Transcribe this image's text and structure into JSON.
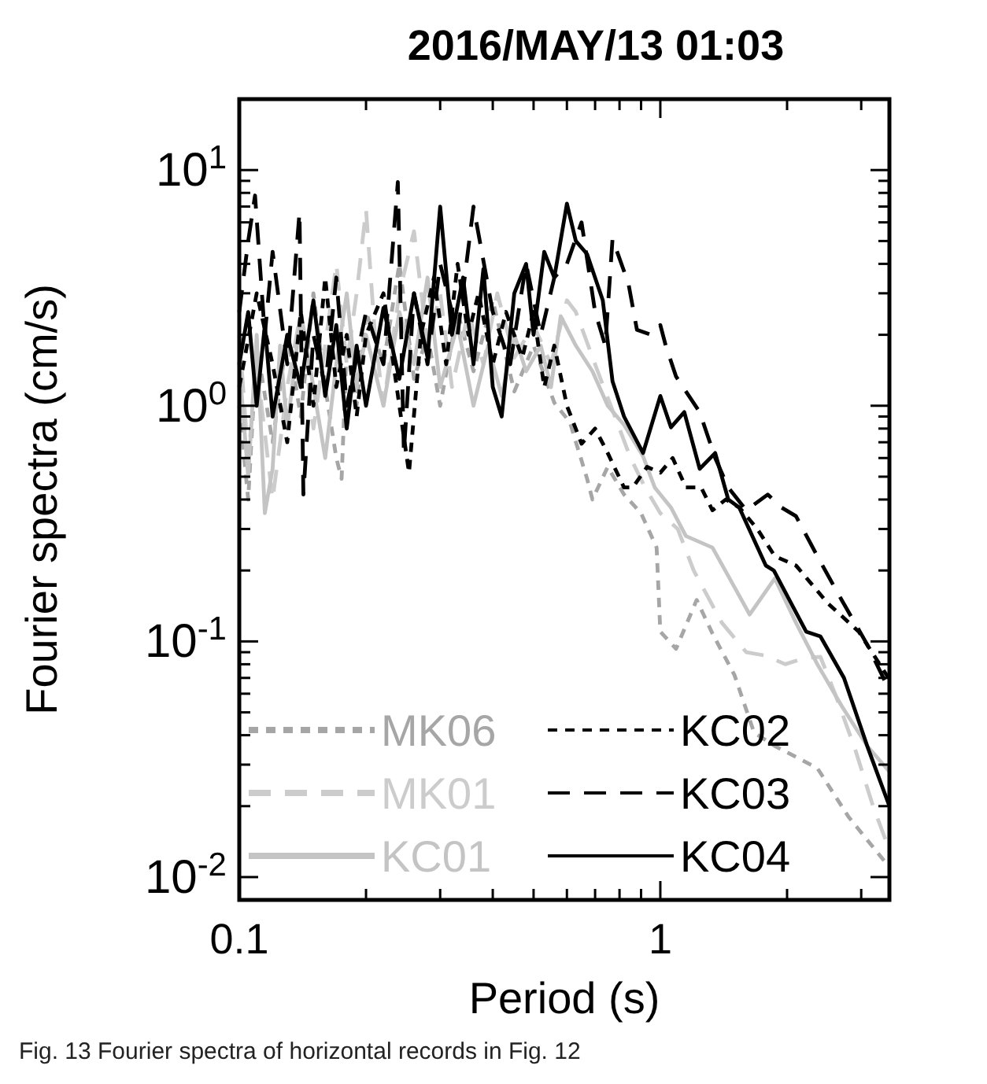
{
  "chart_data": {
    "type": "line",
    "title": "2016/MAY/13 01:03",
    "xlabel": "Period (s)",
    "ylabel": "Fourier spectra (cm/s)",
    "log": "xy",
    "grid": false,
    "legend": "bottom",
    "xlim": [
      0.1,
      3.5
    ],
    "xticks": [
      0.1,
      {
        "value": 0.2,
        "label": null
      },
      {
        "value": 0.3,
        "label": null
      },
      {
        "value": 0.4,
        "label": null
      },
      {
        "value": 0.5,
        "label": null
      },
      {
        "value": 0.6,
        "label": null
      },
      {
        "value": 0.7,
        "label": null
      },
      {
        "value": 0.8,
        "label": null
      },
      {
        "value": 0.9,
        "label": null
      },
      1,
      {
        "value": 2,
        "label": null
      },
      {
        "value": 3,
        "label": null
      }
    ],
    "ylim": [
      0.008,
      20
    ],
    "yticks": [
      {
        "value": 0.01,
        "label": "10$^{-2}$"
      },
      {
        "value": 0.02,
        "label": null
      },
      {
        "value": 0.03,
        "label": null
      },
      {
        "value": 0.04,
        "label": null
      },
      {
        "value": 0.05,
        "label": null
      },
      {
        "value": 0.06,
        "label": null
      },
      {
        "value": 0.07,
        "label": null
      },
      {
        "value": 0.08,
        "label": null
      },
      {
        "value": 0.09,
        "label": null
      },
      {
        "value": 0.1,
        "label": "10$^{-1}$"
      },
      {
        "value": 0.2,
        "label": null
      },
      {
        "value": 0.3,
        "label": null
      },
      {
        "value": 0.4,
        "label": null
      },
      {
        "value": 0.5,
        "label": null
      },
      {
        "value": 0.6,
        "label": null
      },
      {
        "value": 0.7,
        "label": null
      },
      {
        "value": 0.8,
        "label": null
      },
      {
        "value": 0.9,
        "label": null
      },
      {
        "value": 1,
        "label": "10$^{0}$"
      },
      {
        "value": 2,
        "label": null
      },
      {
        "value": 3,
        "label": null
      },
      {
        "value": 4,
        "label": null
      },
      {
        "value": 5,
        "label": null
      },
      {
        "value": 6,
        "label": null
      },
      {
        "value": 7,
        "label": null
      },
      {
        "value": 8,
        "label": null
      },
      {
        "value": 9,
        "label": null
      },
      {
        "value": 10,
        "label": "10$^{1}$"
      }
    ],
    "series": [
      {
        "name": "MK06",
        "color": "#a6a6a6",
        "line_style": "dotted",
        "x": [
          0.1,
          0.105,
          0.11,
          0.12,
          0.13,
          0.14,
          0.15,
          0.16,
          0.17,
          0.175,
          0.18,
          0.19,
          0.2,
          0.22,
          0.24,
          0.26,
          0.28,
          0.3,
          0.33,
          0.36,
          0.4,
          0.45,
          0.5,
          0.56,
          0.61,
          0.67,
          0.69,
          0.75,
          0.82,
          0.9,
          0.98,
          1.0,
          1.09,
          1.22,
          1.33,
          1.5,
          1.67,
          1.87,
          2.36,
          2.8,
          3.5
        ],
        "values": [
          1.0,
          0.4,
          1.8,
          0.7,
          2.0,
          0.9,
          3.0,
          1.2,
          0.6,
          0.49,
          1.8,
          1.0,
          2.5,
          1.5,
          4.0,
          1.3,
          2.0,
          1.0,
          2.5,
          1.4,
          2.8,
          1.15,
          1.8,
          1.03,
          0.85,
          0.49,
          0.4,
          0.55,
          0.42,
          0.35,
          0.25,
          0.11,
          0.093,
          0.15,
          0.108,
          0.072,
          0.041,
          0.036,
          0.029,
          0.018,
          0.011
        ]
      },
      {
        "name": "MK01",
        "color": "#cccccc",
        "line_style": "dashed",
        "x": [
          0.1,
          0.105,
          0.11,
          0.12,
          0.13,
          0.14,
          0.15,
          0.16,
          0.17,
          0.18,
          0.19,
          0.2,
          0.21,
          0.22,
          0.24,
          0.26,
          0.28,
          0.3,
          0.32,
          0.35,
          0.38,
          0.41,
          0.45,
          0.5,
          0.55,
          0.6,
          0.63,
          0.71,
          0.78,
          0.85,
          0.92,
          1.0,
          1.1,
          1.2,
          1.4,
          1.6,
          1.78,
          1.98,
          2.2,
          2.4,
          2.6,
          2.9,
          3.2,
          3.5
        ],
        "values": [
          2.0,
          0.6,
          1.5,
          0.4,
          1.2,
          2.5,
          0.8,
          1.8,
          4.0,
          1.5,
          3.0,
          6.8,
          2.0,
          1.0,
          3.0,
          5.5,
          1.8,
          3.0,
          1.2,
          2.5,
          1.5,
          3.0,
          1.6,
          2.2,
          1.5,
          2.8,
          2.5,
          1.4,
          0.9,
          0.6,
          0.45,
          0.35,
          0.3,
          0.2,
          0.12,
          0.09,
          0.087,
          0.08,
          0.085,
          0.086,
          0.06,
          0.035,
          0.02,
          0.013
        ]
      },
      {
        "name": "KC01",
        "color": "#c4c4c4",
        "line_style": "solid",
        "x": [
          0.1,
          0.105,
          0.11,
          0.115,
          0.12,
          0.125,
          0.13,
          0.14,
          0.15,
          0.16,
          0.17,
          0.18,
          0.19,
          0.2,
          0.22,
          0.24,
          0.26,
          0.28,
          0.3,
          0.33,
          0.36,
          0.39,
          0.42,
          0.45,
          0.48,
          0.52,
          0.55,
          0.58,
          0.63,
          0.69,
          0.75,
          0.82,
          0.91,
          0.97,
          1.06,
          1.15,
          1.33,
          1.5,
          1.63,
          1.87,
          2.1,
          2.36,
          2.7,
          3.1,
          3.5
        ],
        "values": [
          1.5,
          0.5,
          2.0,
          0.35,
          0.54,
          1.8,
          0.8,
          2.5,
          1.2,
          0.6,
          1.5,
          3.0,
          1.2,
          2.0,
          1.0,
          2.5,
          1.5,
          3.5,
          1.2,
          2.2,
          1.0,
          1.8,
          1.1,
          2.0,
          1.4,
          1.8,
          1.2,
          2.4,
          1.8,
          1.4,
          1.0,
          0.83,
          0.61,
          0.45,
          0.37,
          0.28,
          0.25,
          0.17,
          0.13,
          0.185,
          0.12,
          0.08,
          0.053,
          0.036,
          0.028
        ]
      },
      {
        "name": "KC02",
        "color": "#000000",
        "line_style": "dotted",
        "x": [
          0.1,
          0.11,
          0.12,
          0.13,
          0.14,
          0.15,
          0.16,
          0.17,
          0.18,
          0.19,
          0.2,
          0.22,
          0.24,
          0.253,
          0.27,
          0.29,
          0.31,
          0.33,
          0.35,
          0.37,
          0.4,
          0.43,
          0.47,
          0.5,
          0.53,
          0.56,
          0.6,
          0.65,
          0.7,
          0.75,
          0.82,
          0.86,
          0.93,
          1.0,
          1.07,
          1.15,
          1.25,
          1.33,
          1.43,
          1.54,
          1.7,
          1.87,
          2.1,
          2.5,
          2.96,
          3.5
        ],
        "values": [
          1.2,
          3.0,
          1.5,
          0.7,
          2.5,
          1.0,
          3.5,
          1.2,
          2.0,
          0.9,
          2.0,
          3.0,
          1.0,
          0.52,
          2.0,
          3.5,
          1.5,
          4.0,
          2.0,
          3.0,
          1.5,
          2.5,
          1.6,
          2.5,
          1.2,
          1.8,
          1.0,
          0.69,
          0.8,
          0.63,
          0.45,
          0.45,
          0.55,
          0.52,
          0.6,
          0.45,
          0.45,
          0.36,
          0.4,
          0.37,
          0.3,
          0.23,
          0.21,
          0.145,
          0.11,
          0.069
        ]
      },
      {
        "name": "KC03",
        "color": "#000000",
        "line_style": "dashed",
        "x": [
          0.1,
          0.105,
          0.109,
          0.115,
          0.12,
          0.13,
          0.139,
          0.142,
          0.15,
          0.16,
          0.17,
          0.18,
          0.2,
          0.22,
          0.238,
          0.246,
          0.26,
          0.28,
          0.3,
          0.33,
          0.36,
          0.4,
          0.44,
          0.48,
          0.52,
          0.56,
          0.6,
          0.65,
          0.7,
          0.74,
          0.77,
          0.84,
          0.88,
          0.95,
          1.0,
          1.03,
          1.09,
          1.24,
          1.35,
          1.45,
          1.6,
          1.8,
          1.94,
          2.1,
          2.36,
          2.64,
          3.1,
          3.5
        ],
        "values": [
          2.5,
          5.0,
          7.8,
          2.0,
          4.5,
          1.5,
          6.6,
          0.42,
          2.0,
          1.2,
          3.5,
          1.0,
          2.5,
          1.5,
          8.9,
          0.63,
          3.0,
          1.5,
          4.0,
          2.0,
          7.0,
          2.5,
          1.5,
          4.0,
          2.0,
          3.5,
          4.0,
          6.0,
          2.5,
          1.8,
          5.1,
          3.3,
          2.1,
          2.0,
          2.2,
          1.8,
          1.33,
          0.94,
          0.6,
          0.45,
          0.36,
          0.42,
          0.37,
          0.34,
          0.23,
          0.16,
          0.097,
          0.062
        ]
      },
      {
        "name": "KC04",
        "color": "#000000",
        "line_style": "solid",
        "x": [
          0.1,
          0.105,
          0.11,
          0.115,
          0.12,
          0.13,
          0.14,
          0.15,
          0.16,
          0.17,
          0.18,
          0.19,
          0.2,
          0.22,
          0.24,
          0.26,
          0.28,
          0.3,
          0.32,
          0.34,
          0.36,
          0.38,
          0.4,
          0.42,
          0.45,
          0.48,
          0.5,
          0.53,
          0.56,
          0.6,
          0.63,
          0.67,
          0.73,
          0.77,
          0.82,
          0.91,
          1.0,
          1.06,
          1.14,
          1.24,
          1.35,
          1.45,
          1.54,
          1.78,
          1.86,
          2.22,
          2.4,
          2.73,
          3.1,
          3.5
        ],
        "values": [
          1.5,
          2.5,
          1.0,
          2.2,
          0.9,
          2.0,
          1.2,
          2.8,
          1.1,
          2.2,
          0.8,
          1.8,
          1.0,
          2.6,
          1.3,
          3.0,
          1.6,
          7.0,
          2.0,
          3.5,
          1.5,
          3.8,
          1.2,
          0.9,
          3.0,
          4.0,
          2.0,
          4.5,
          3.5,
          7.2,
          5.0,
          4.4,
          2.8,
          1.27,
          0.9,
          0.63,
          1.1,
          0.81,
          0.94,
          0.54,
          0.63,
          0.4,
          0.37,
          0.21,
          0.2,
          0.11,
          0.105,
          0.07,
          0.036,
          0.02
        ]
      }
    ],
    "annotations": [
      "Fig. 13 Fourier spectra of horizontal records in Fig. 12"
    ]
  }
}
